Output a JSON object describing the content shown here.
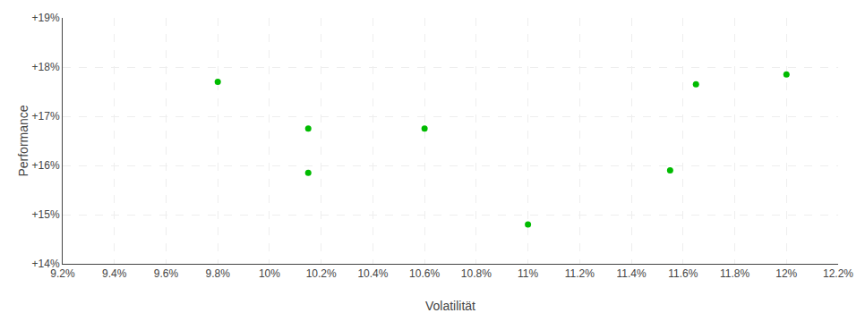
{
  "chart_data": {
    "type": "scatter",
    "x": [
      9.8,
      10.15,
      10.15,
      10.6,
      11.0,
      11.55,
      11.65,
      12.0
    ],
    "values": [
      17.7,
      15.85,
      16.75,
      16.75,
      14.8,
      15.9,
      17.65,
      17.85
    ],
    "color": "#00bb00",
    "marker": "circle",
    "xlabel": "Volatilität",
    "ylabel": "Performance",
    "xlim": [
      9.2,
      12.2
    ],
    "ylim": [
      14.0,
      19.0
    ],
    "xticks": [
      {
        "value": 9.2,
        "label": "9.2%"
      },
      {
        "value": 9.4,
        "label": "9.4%"
      },
      {
        "value": 9.6,
        "label": "9.6%"
      },
      {
        "value": 9.8,
        "label": "9.8%"
      },
      {
        "value": 10.0,
        "label": "10%"
      },
      {
        "value": 10.2,
        "label": "10.2%"
      },
      {
        "value": 10.4,
        "label": "10.4%"
      },
      {
        "value": 10.6,
        "label": "10.6%"
      },
      {
        "value": 10.8,
        "label": "10.8%"
      },
      {
        "value": 11.0,
        "label": "11%"
      },
      {
        "value": 11.2,
        "label": "11.2%"
      },
      {
        "value": 11.4,
        "label": "11.4%"
      },
      {
        "value": 11.6,
        "label": "11.6%"
      },
      {
        "value": 11.8,
        "label": "11.8%"
      },
      {
        "value": 12.0,
        "label": "12%"
      },
      {
        "value": 12.2,
        "label": "12.2%"
      }
    ],
    "yticks": [
      {
        "value": 14,
        "label": "+14%"
      },
      {
        "value": 15,
        "label": "+15%"
      },
      {
        "value": 16,
        "label": "+16%"
      },
      {
        "value": 17,
        "label": "+17%"
      },
      {
        "value": 18,
        "label": "+18%"
      },
      {
        "value": 19,
        "label": "+19%"
      }
    ],
    "grid": true
  }
}
